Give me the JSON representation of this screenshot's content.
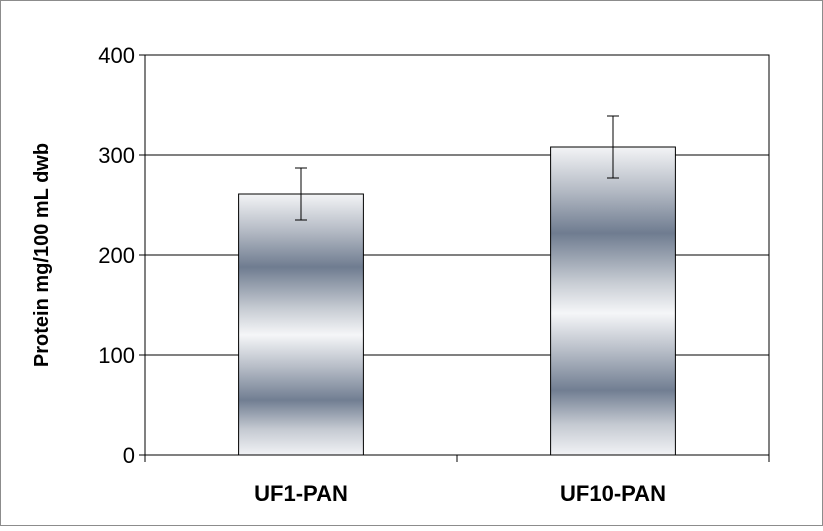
{
  "chart_data": {
    "type": "bar",
    "title": "",
    "xlabel": "",
    "ylabel": "Protein mg/100 mL dwb",
    "categories": [
      "UF1-PAN",
      "UF10-PAN"
    ],
    "values": [
      261,
      308
    ],
    "error": [
      26,
      31
    ],
    "ylim": [
      0,
      400
    ],
    "yticks": [
      0,
      100,
      200,
      300,
      400
    ],
    "ytick_labels": [
      "0",
      "100",
      "200",
      "300",
      "400"
    ],
    "grid": true,
    "legend": "none",
    "colors": {
      "bar_dark": "#6e7b8f",
      "bar_light": "#f4f5f7",
      "grid": "#000000",
      "frame": "#8c8c8c"
    }
  }
}
